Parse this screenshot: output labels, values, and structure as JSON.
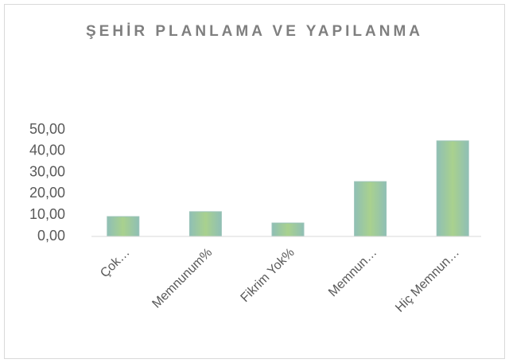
{
  "chart_data": {
    "type": "bar",
    "title": "ŞEHİR PLANLAMA VE YAPILANMA",
    "categories": [
      "Çok…",
      "Memnunum%",
      "Fikrim Yok%",
      "Memnun…",
      "Hiç Memnun…"
    ],
    "values": [
      9.3,
      11.6,
      6.3,
      25.7,
      44.8
    ],
    "color": "#a9d18e",
    "ylim": [
      0,
      50
    ],
    "yticks": [
      {
        "value": 0,
        "label": "0,00"
      },
      {
        "value": 10,
        "label": "10,00"
      },
      {
        "value": 20,
        "label": "20,00"
      },
      {
        "value": 30,
        "label": "30,00"
      },
      {
        "value": 40,
        "label": "40,00"
      },
      {
        "value": 50,
        "label": "50,00"
      }
    ],
    "grid": false
  }
}
